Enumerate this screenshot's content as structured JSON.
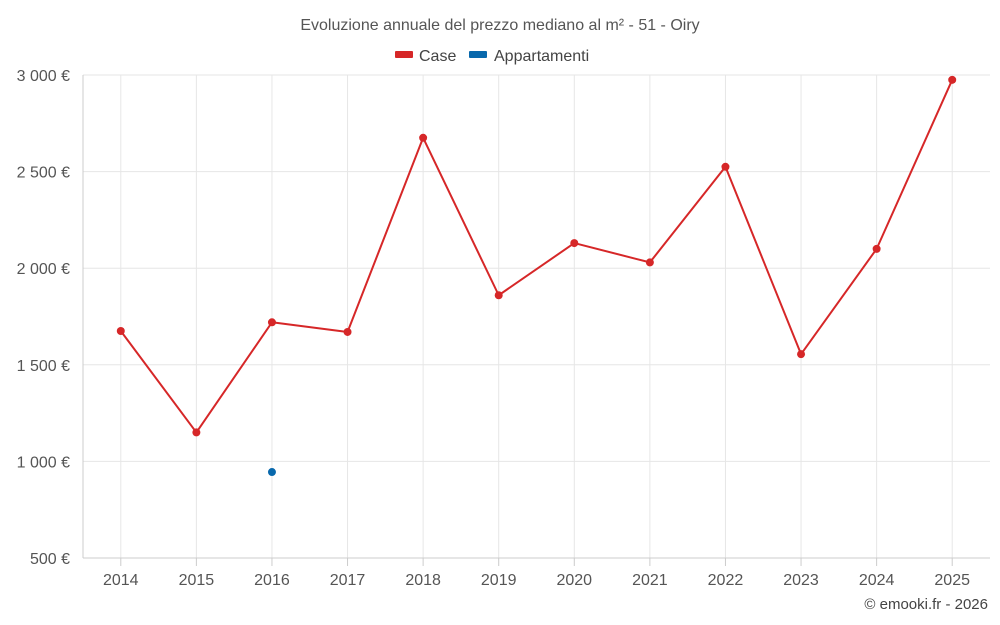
{
  "chart_data": {
    "type": "line",
    "title": "Evoluzione annuale del prezzo mediano al m² - 51 - Oiry",
    "categories": [
      "2014",
      "2015",
      "2016",
      "2017",
      "2018",
      "2019",
      "2020",
      "2021",
      "2022",
      "2023",
      "2024",
      "2025"
    ],
    "series": [
      {
        "name": "Case",
        "color": "#d62728",
        "values": [
          1675,
          1150,
          1720,
          1670,
          2675,
          1860,
          2130,
          2030,
          2525,
          1555,
          2100,
          2975
        ]
      },
      {
        "name": "Appartamenti",
        "color": "#0868ac",
        "values": [
          null,
          null,
          945,
          null,
          null,
          null,
          null,
          null,
          null,
          null,
          null,
          null
        ]
      }
    ],
    "y_ticks": [
      500,
      1000,
      1500,
      2000,
      2500,
      3000
    ],
    "y_tick_labels": [
      "500 €",
      "1 000 €",
      "1 500 €",
      "2 000 €",
      "2 500 €",
      "3 000 €"
    ],
    "ylim": [
      500,
      3000
    ],
    "grid": true,
    "legend": "top-center",
    "credit": "© emooki.fr - 2026"
  }
}
